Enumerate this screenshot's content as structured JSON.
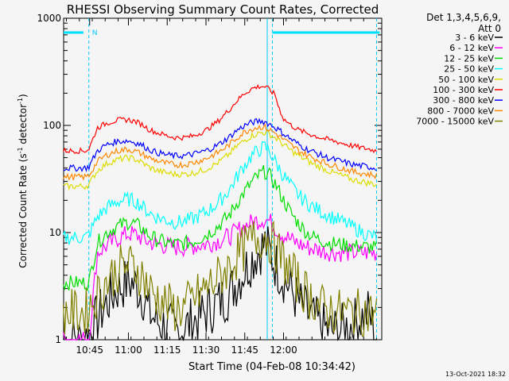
{
  "chart_data": {
    "type": "line",
    "title": "RHESSI Observing Summary Count Rates, Corrected",
    "xlabel": "Start Time (04-Feb-08 10:34:42)",
    "ylabel_main": "Corrected Count Rate (s",
    "ylabel_sup1": "-1",
    "ylabel_mid": " detector",
    "ylabel_sup2": "-1",
    "ylabel_end": ")",
    "yscale": "log",
    "ylim": [
      1,
      1000
    ],
    "xlim_minutes": [
      10.5822,
      12.6333
    ],
    "x_ticks": [
      {
        "m": 10.75,
        "label": "10:45"
      },
      {
        "m": 11.0,
        "label": "11:00"
      },
      {
        "m": 11.25,
        "label": "11:15"
      },
      {
        "m": 11.5,
        "label": "11:30"
      },
      {
        "m": 11.75,
        "label": "11:45"
      },
      {
        "m": 12.0,
        "label": "12:00"
      }
    ],
    "y_ticks": [
      {
        "v": 1,
        "label": "1"
      },
      {
        "v": 10,
        "label": "10"
      },
      {
        "v": 100,
        "label": "100"
      },
      {
        "v": 1000,
        "label": "1000"
      }
    ],
    "legend_header": [
      "Det 1,3,4,5,6,9,",
      "Att 0"
    ],
    "legend_position": "right",
    "annotation_n": "N",
    "timestamp": "13-Oct-2021 18:32",
    "night_bars": [
      {
        "start": 10.582,
        "end": 10.71
      },
      {
        "start": 11.928,
        "end": 12.62
      }
    ],
    "vlines_dashed": [
      10.745,
      11.928,
      12.6
    ],
    "vline_solid": 11.895,
    "series": [
      {
        "name": "3 - 6 keV",
        "color": "#000000",
        "x": [
          10.58,
          10.72,
          10.78,
          10.86,
          10.93,
          11.0,
          11.05,
          11.1,
          11.13,
          11.18,
          11.25,
          11.3,
          11.36,
          11.42,
          11.5,
          11.58,
          11.65,
          11.7,
          11.75,
          11.8,
          11.85,
          11.88,
          11.91,
          11.95,
          12.0,
          12.05,
          12.1,
          12.15,
          12.2,
          12.25,
          12.3,
          12.35,
          12.4,
          12.45,
          12.5,
          12.55,
          12.6
        ],
        "y": [
          1,
          1,
          1.4,
          2.2,
          3.0,
          3.5,
          3.2,
          2.5,
          1.8,
          1.5,
          1.3,
          1.2,
          1.3,
          1.5,
          1.8,
          2.2,
          2.7,
          3.5,
          4.5,
          5.8,
          7.0,
          7.8,
          6.5,
          5.0,
          3.8,
          2.9,
          2.2,
          1.8,
          1.5,
          1.3,
          1.2,
          1.2,
          1.3,
          1.4,
          1.6,
          1.8,
          1
        ]
      },
      {
        "name": "6 - 12 keV",
        "color": "#ff00ff",
        "x": [
          10.58,
          10.65,
          10.72,
          10.745,
          10.8,
          10.86,
          10.93,
          11.0,
          11.05,
          11.1,
          11.13,
          11.18,
          11.25,
          11.3,
          11.36,
          11.42,
          11.5,
          11.58,
          11.65,
          11.7,
          11.75,
          11.8,
          11.85,
          11.88,
          11.91,
          11.95,
          12.0,
          12.05,
          12.1,
          12.15,
          12.2,
          12.25,
          12.3,
          12.35,
          12.4,
          12.45,
          12.5,
          12.55,
          12.6
        ],
        "y": [
          1,
          1,
          1,
          1,
          6.5,
          7.5,
          8.8,
          9.8,
          9.5,
          8.6,
          8.2,
          7.8,
          7.5,
          7.3,
          7.3,
          7.5,
          7.8,
          8.4,
          9.2,
          10.3,
          11.5,
          12.5,
          13.2,
          13.4,
          12.8,
          11.0,
          9.5,
          8.5,
          7.8,
          7.3,
          7.0,
          6.8,
          6.6,
          6.5,
          6.5,
          6.5,
          6.5,
          6.5,
          6.5
        ]
      },
      {
        "name": "12 - 25 keV",
        "color": "#00dd00",
        "x": [
          10.58,
          10.65,
          10.72,
          10.745,
          10.8,
          10.86,
          10.93,
          11.0,
          11.05,
          11.1,
          11.13,
          11.18,
          11.25,
          11.3,
          11.36,
          11.42,
          11.5,
          11.58,
          11.65,
          11.7,
          11.75,
          11.8,
          11.85,
          11.88,
          11.91,
          11.95,
          12.0,
          12.05,
          12.1,
          12.15,
          12.2,
          12.25,
          12.3,
          12.35,
          12.4,
          12.45,
          12.5,
          12.55,
          12.6
        ],
        "y": [
          3.4,
          3.4,
          3.4,
          3.4,
          8.0,
          10.0,
          11.5,
          12.5,
          12.0,
          10.5,
          9.5,
          8.6,
          8.0,
          7.8,
          7.9,
          8.3,
          9.5,
          11.5,
          14.5,
          19,
          24,
          30,
          35,
          37,
          34,
          28,
          20,
          15,
          12,
          10,
          9,
          8.4,
          8.0,
          7.8,
          7.6,
          7.5,
          7.4,
          7.3,
          7.2
        ]
      },
      {
        "name": "25 - 50 keV",
        "color": "#00ffff",
        "x": [
          10.58,
          10.65,
          10.72,
          10.745,
          10.8,
          10.86,
          10.93,
          11.0,
          11.05,
          11.1,
          11.13,
          11.18,
          11.25,
          11.3,
          11.36,
          11.42,
          11.5,
          11.58,
          11.65,
          11.7,
          11.75,
          11.8,
          11.85,
          11.88,
          11.91,
          11.95,
          12.0,
          12.05,
          12.1,
          12.15,
          12.2,
          12.25,
          12.3,
          12.35,
          12.4,
          12.45,
          12.5,
          12.55,
          12.6
        ],
        "y": [
          9,
          9,
          9,
          9.5,
          14,
          17,
          19.5,
          20.5,
          19.5,
          17,
          15.5,
          14,
          13,
          12.5,
          12.7,
          13.5,
          15.5,
          19,
          25,
          33,
          43,
          53,
          60,
          63,
          57,
          45,
          34,
          27,
          22,
          19,
          17,
          15.5,
          14.2,
          13.2,
          12.2,
          11.2,
          10.2,
          9.5,
          9
        ]
      },
      {
        "name": "50 - 100 keV",
        "color": "#dddd00",
        "x": [
          10.58,
          10.65,
          10.72,
          10.745,
          10.8,
          10.86,
          10.93,
          11.0,
          11.05,
          11.1,
          11.13,
          11.18,
          11.25,
          11.3,
          11.36,
          11.42,
          11.5,
          11.58,
          11.65,
          11.7,
          11.75,
          11.8,
          11.85,
          11.88,
          11.91,
          11.95,
          12.0,
          12.05,
          12.1,
          12.15,
          12.2,
          12.25,
          12.3,
          12.35,
          12.4,
          12.45,
          12.5,
          12.55,
          12.6
        ],
        "y": [
          27,
          27,
          27,
          28,
          38,
          44,
          48,
          50,
          48,
          44,
          41,
          38,
          36,
          35,
          35,
          36,
          39,
          45,
          54,
          64,
          73,
          81,
          85,
          86,
          83,
          76,
          66,
          58,
          52,
          47,
          43,
          40,
          37,
          35,
          33,
          31,
          30,
          29,
          28
        ]
      },
      {
        "name": "100 - 300 keV",
        "color": "#ff0000",
        "x": [
          10.58,
          10.65,
          10.72,
          10.745,
          10.8,
          10.86,
          10.93,
          11.0,
          11.05,
          11.1,
          11.13,
          11.18,
          11.25,
          11.3,
          11.36,
          11.42,
          11.5,
          11.58,
          11.65,
          11.7,
          11.75,
          11.8,
          11.85,
          11.88,
          11.91,
          11.95,
          11.96,
          12.0,
          12.05,
          12.1,
          12.15,
          12.2,
          12.25,
          12.3,
          12.35,
          12.4,
          12.45,
          12.5,
          12.55,
          12.6
        ],
        "y": [
          58,
          58,
          58,
          60,
          95,
          105,
          112,
          113,
          108,
          100,
          92,
          86,
          80,
          77,
          77,
          80,
          90,
          110,
          140,
          170,
          200,
          222,
          232,
          230,
          215,
          190,
          160,
          115,
          100,
          90,
          85,
          80,
          76,
          73,
          70,
          67,
          64,
          62,
          60,
          58
        ]
      },
      {
        "name": "300 - 800 keV",
        "color": "#0000ff",
        "x": [
          10.58,
          10.65,
          10.72,
          10.745,
          10.8,
          10.86,
          10.93,
          11.0,
          11.05,
          11.1,
          11.13,
          11.18,
          11.25,
          11.3,
          11.36,
          11.42,
          11.5,
          11.58,
          11.65,
          11.7,
          11.75,
          11.8,
          11.85,
          11.88,
          11.91,
          11.95,
          12.0,
          12.05,
          12.1,
          12.15,
          12.2,
          12.25,
          12.3,
          12.35,
          12.4,
          12.45,
          12.5,
          12.55,
          12.6
        ],
        "y": [
          40,
          40,
          40,
          41,
          58,
          66,
          71,
          72,
          69,
          64,
          60,
          56,
          53,
          52,
          52,
          54,
          58,
          66,
          78,
          90,
          100,
          107,
          110,
          108,
          103,
          95,
          84,
          74,
          66,
          60,
          56,
          52,
          49,
          47,
          45,
          43,
          42,
          41,
          40
        ]
      },
      {
        "name": "800 - 7000 keV",
        "color": "#ff8800",
        "x": [
          10.58,
          10.65,
          10.72,
          10.745,
          10.8,
          10.86,
          10.93,
          11.0,
          11.05,
          11.1,
          11.13,
          11.18,
          11.25,
          11.3,
          11.36,
          11.42,
          11.5,
          11.58,
          11.65,
          11.7,
          11.75,
          11.8,
          11.85,
          11.88,
          11.91,
          11.95,
          12.0,
          12.05,
          12.1,
          12.15,
          12.2,
          12.25,
          12.3,
          12.35,
          12.4,
          12.45,
          12.5,
          12.55,
          12.6
        ],
        "y": [
          33,
          33,
          33,
          34,
          46,
          53,
          58,
          60,
          57,
          53,
          50,
          47,
          44,
          43,
          43,
          45,
          49,
          56,
          66,
          77,
          87,
          94,
          97,
          96,
          91,
          84,
          74,
          65,
          58,
          53,
          49,
          46,
          43,
          41,
          39,
          37,
          36,
          35,
          34
        ]
      },
      {
        "name": "7000 - 15000 keV",
        "color": "#808000",
        "x": [
          10.58,
          10.72,
          10.78,
          10.86,
          10.93,
          11.0,
          11.05,
          11.1,
          11.13,
          11.18,
          11.25,
          11.3,
          11.36,
          11.42,
          11.5,
          11.58,
          11.65,
          11.7,
          11.75,
          11.8,
          11.85,
          11.88,
          11.91,
          11.95,
          12.0,
          12.05,
          12.1,
          12.15,
          12.2,
          12.25,
          12.3,
          12.35,
          12.4,
          12.45,
          12.5,
          12.55,
          12.6
        ],
        "y": [
          1.8,
          1.8,
          2.4,
          3.5,
          4.5,
          5.0,
          4.6,
          3.8,
          3.0,
          2.5,
          2.1,
          1.9,
          2.0,
          2.4,
          3.0,
          3.8,
          4.8,
          6.0,
          7.2,
          8.5,
          9.2,
          9.5,
          8.6,
          7.0,
          5.4,
          4.2,
          3.3,
          2.7,
          2.3,
          2.0,
          1.9,
          1.8,
          1.8,
          1.8,
          1.8,
          1.8,
          1.8
        ]
      }
    ]
  }
}
